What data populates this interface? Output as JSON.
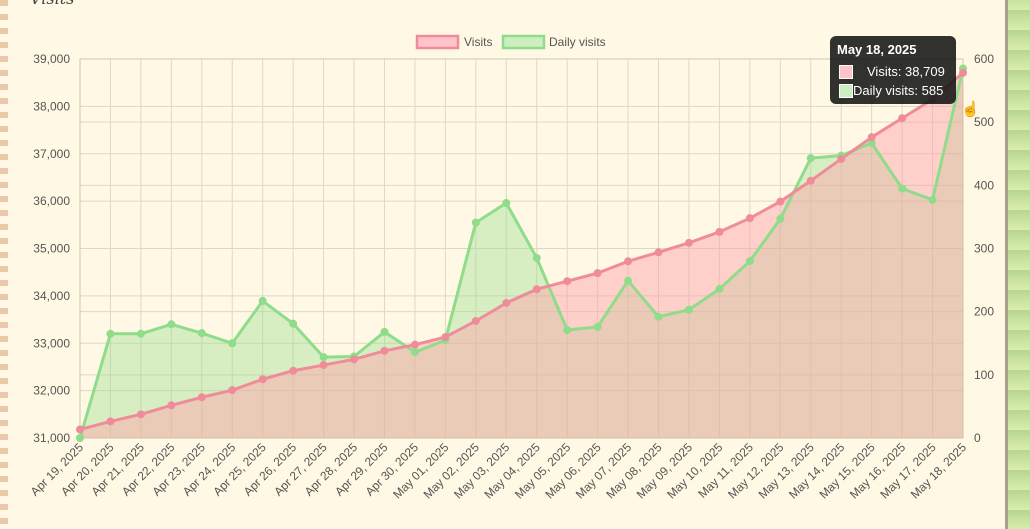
{
  "page": {
    "title": "Visits"
  },
  "colors": {
    "visits_line": "#f08c9a",
    "visits_fill": "rgba(255,160,170,0.45)",
    "daily_line": "#8fdc8a",
    "daily_fill": "rgba(150,220,140,0.38)",
    "grid": "#ddd8c4"
  },
  "legend": [
    {
      "label": "Visits"
    },
    {
      "label": "Daily visits"
    }
  ],
  "tooltip": {
    "title": "May 18, 2025",
    "rows": [
      {
        "text": "Visits: 38,709"
      },
      {
        "text": "Daily visits: 585"
      }
    ]
  },
  "cursor_icon": "cursor-icon",
  "chart_data": {
    "type": "area",
    "categories": [
      "Apr 19, 2025",
      "Apr 20, 2025",
      "Apr 21, 2025",
      "Apr 22, 2025",
      "Apr 23, 2025",
      "Apr 24, 2025",
      "Apr 25, 2025",
      "Apr 26, 2025",
      "Apr 27, 2025",
      "Apr 28, 2025",
      "Apr 29, 2025",
      "Apr 30, 2025",
      "May 01, 2025",
      "May 02, 2025",
      "May 03, 2025",
      "May 04, 2025",
      "May 05, 2025",
      "May 06, 2025",
      "May 07, 2025",
      "May 08, 2025",
      "May 09, 2025",
      "May 10, 2025",
      "May 11, 2025",
      "May 12, 2025",
      "May 13, 2025",
      "May 14, 2025",
      "May 15, 2025",
      "May 16, 2025",
      "May 17, 2025",
      "May 18, 2025"
    ],
    "series": [
      {
        "name": "Visits",
        "axis": "left",
        "values": [
          31180,
          31350,
          31500,
          31690,
          31860,
          32010,
          32240,
          32420,
          32540,
          32660,
          32840,
          32970,
          33130,
          33470,
          33850,
          34140,
          34310,
          34480,
          34730,
          34920,
          35120,
          35350,
          35640,
          35990,
          36430,
          36890,
          37350,
          37750,
          38150,
          38709
        ]
      },
      {
        "name": "Daily visits",
        "axis": "right",
        "values": [
          0,
          165,
          165,
          180,
          166,
          150,
          217,
          181,
          128,
          129,
          168,
          136,
          155,
          341,
          372,
          285,
          171,
          176,
          249,
          192,
          203,
          236,
          280,
          347,
          443,
          447,
          467,
          395,
          377,
          585
        ]
      }
    ],
    "y_left": {
      "min": 31000,
      "max": 39000,
      "ticks": [
        "31,000",
        "32,000",
        "33,000",
        "34,000",
        "35,000",
        "36,000",
        "37,000",
        "38,000",
        "39,000"
      ]
    },
    "y_right": {
      "min": 0,
      "max": 600,
      "ticks": [
        "0",
        "100",
        "200",
        "300",
        "400",
        "500",
        "600"
      ]
    },
    "grid": true,
    "legend_position": "top-center"
  }
}
